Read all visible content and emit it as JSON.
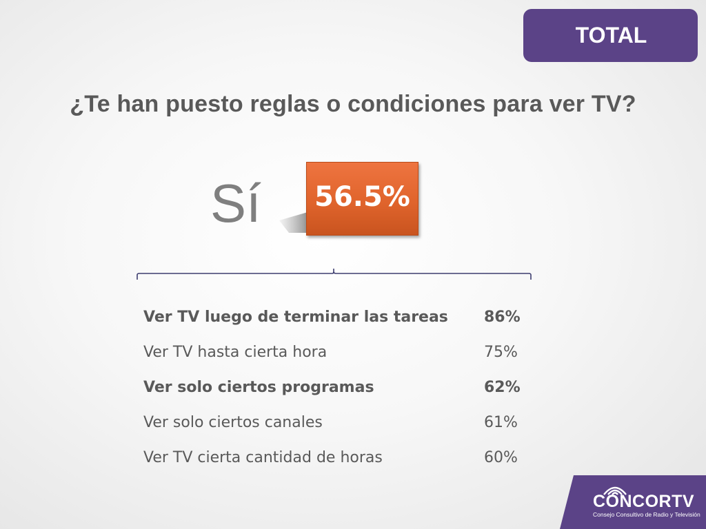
{
  "badge": {
    "label": "TOTAL"
  },
  "question": "¿Te han puesto reglas o condiciones para ver TV?",
  "answer": {
    "label": "Sí",
    "value": "56.5%"
  },
  "rules": [
    {
      "label": "Ver TV luego de terminar las tareas",
      "value": "86%",
      "bold": true
    },
    {
      "label": "Ver TV hasta cierta hora",
      "value": "75%",
      "bold": false
    },
    {
      "label": "Ver solo ciertos programas",
      "value": "62%",
      "bold": true
    },
    {
      "label": "Ver solo ciertos canales",
      "value": "61%",
      "bold": false
    },
    {
      "label": "Ver TV cierta cantidad de horas",
      "value": "60%",
      "bold": false
    }
  ],
  "logo": {
    "name": "CONCORTV",
    "subtitle": "Consejo Consultivo de Radio y Televisión"
  },
  "colors": {
    "brand_purple": "#5b4387",
    "accent_orange": "#e0642c",
    "text_gray": "#595959"
  }
}
